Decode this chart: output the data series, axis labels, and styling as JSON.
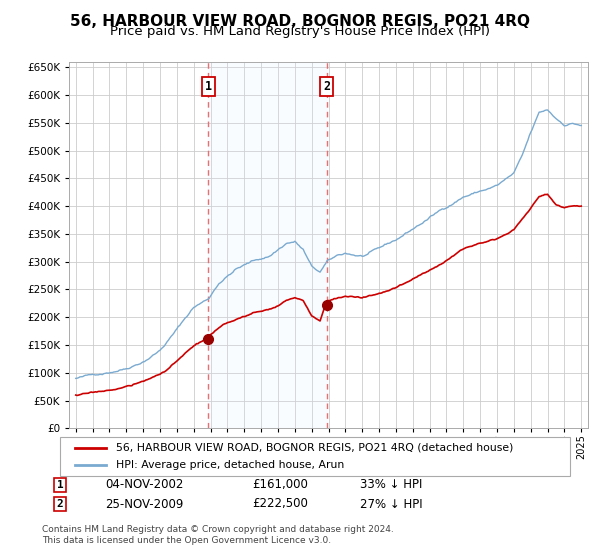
{
  "title": "56, HARBOUR VIEW ROAD, BOGNOR REGIS, PO21 4RQ",
  "subtitle": "Price paid vs. HM Land Registry's House Price Index (HPI)",
  "legend_line1": "56, HARBOUR VIEW ROAD, BOGNOR REGIS, PO21 4RQ (detached house)",
  "legend_line2": "HPI: Average price, detached house, Arun",
  "footer": "Contains HM Land Registry data © Crown copyright and database right 2024.\nThis data is licensed under the Open Government Licence v3.0.",
  "sale1_label": "1",
  "sale1_date": "04-NOV-2002",
  "sale1_price": "£161,000",
  "sale1_hpi": "33% ↓ HPI",
  "sale2_label": "2",
  "sale2_date": "25-NOV-2009",
  "sale2_price": "£222,500",
  "sale2_hpi": "27% ↓ HPI",
  "sale1_year": 2002.87,
  "sale2_year": 2009.9,
  "sale1_price_val": 161000,
  "sale2_price_val": 222500,
  "price_line_color": "#cc0000",
  "hpi_line_color": "#7aaad0",
  "vline_color": "#e87070",
  "marker_color": "#990000",
  "shade_color": "#ddeeff",
  "ylim": [
    0,
    660000
  ],
  "yticks": [
    0,
    50000,
    100000,
    150000,
    200000,
    250000,
    300000,
    350000,
    400000,
    450000,
    500000,
    550000,
    600000,
    650000
  ],
  "background_color": "#ffffff",
  "grid_color": "#cccccc",
  "title_fontsize": 11,
  "subtitle_fontsize": 9.5
}
